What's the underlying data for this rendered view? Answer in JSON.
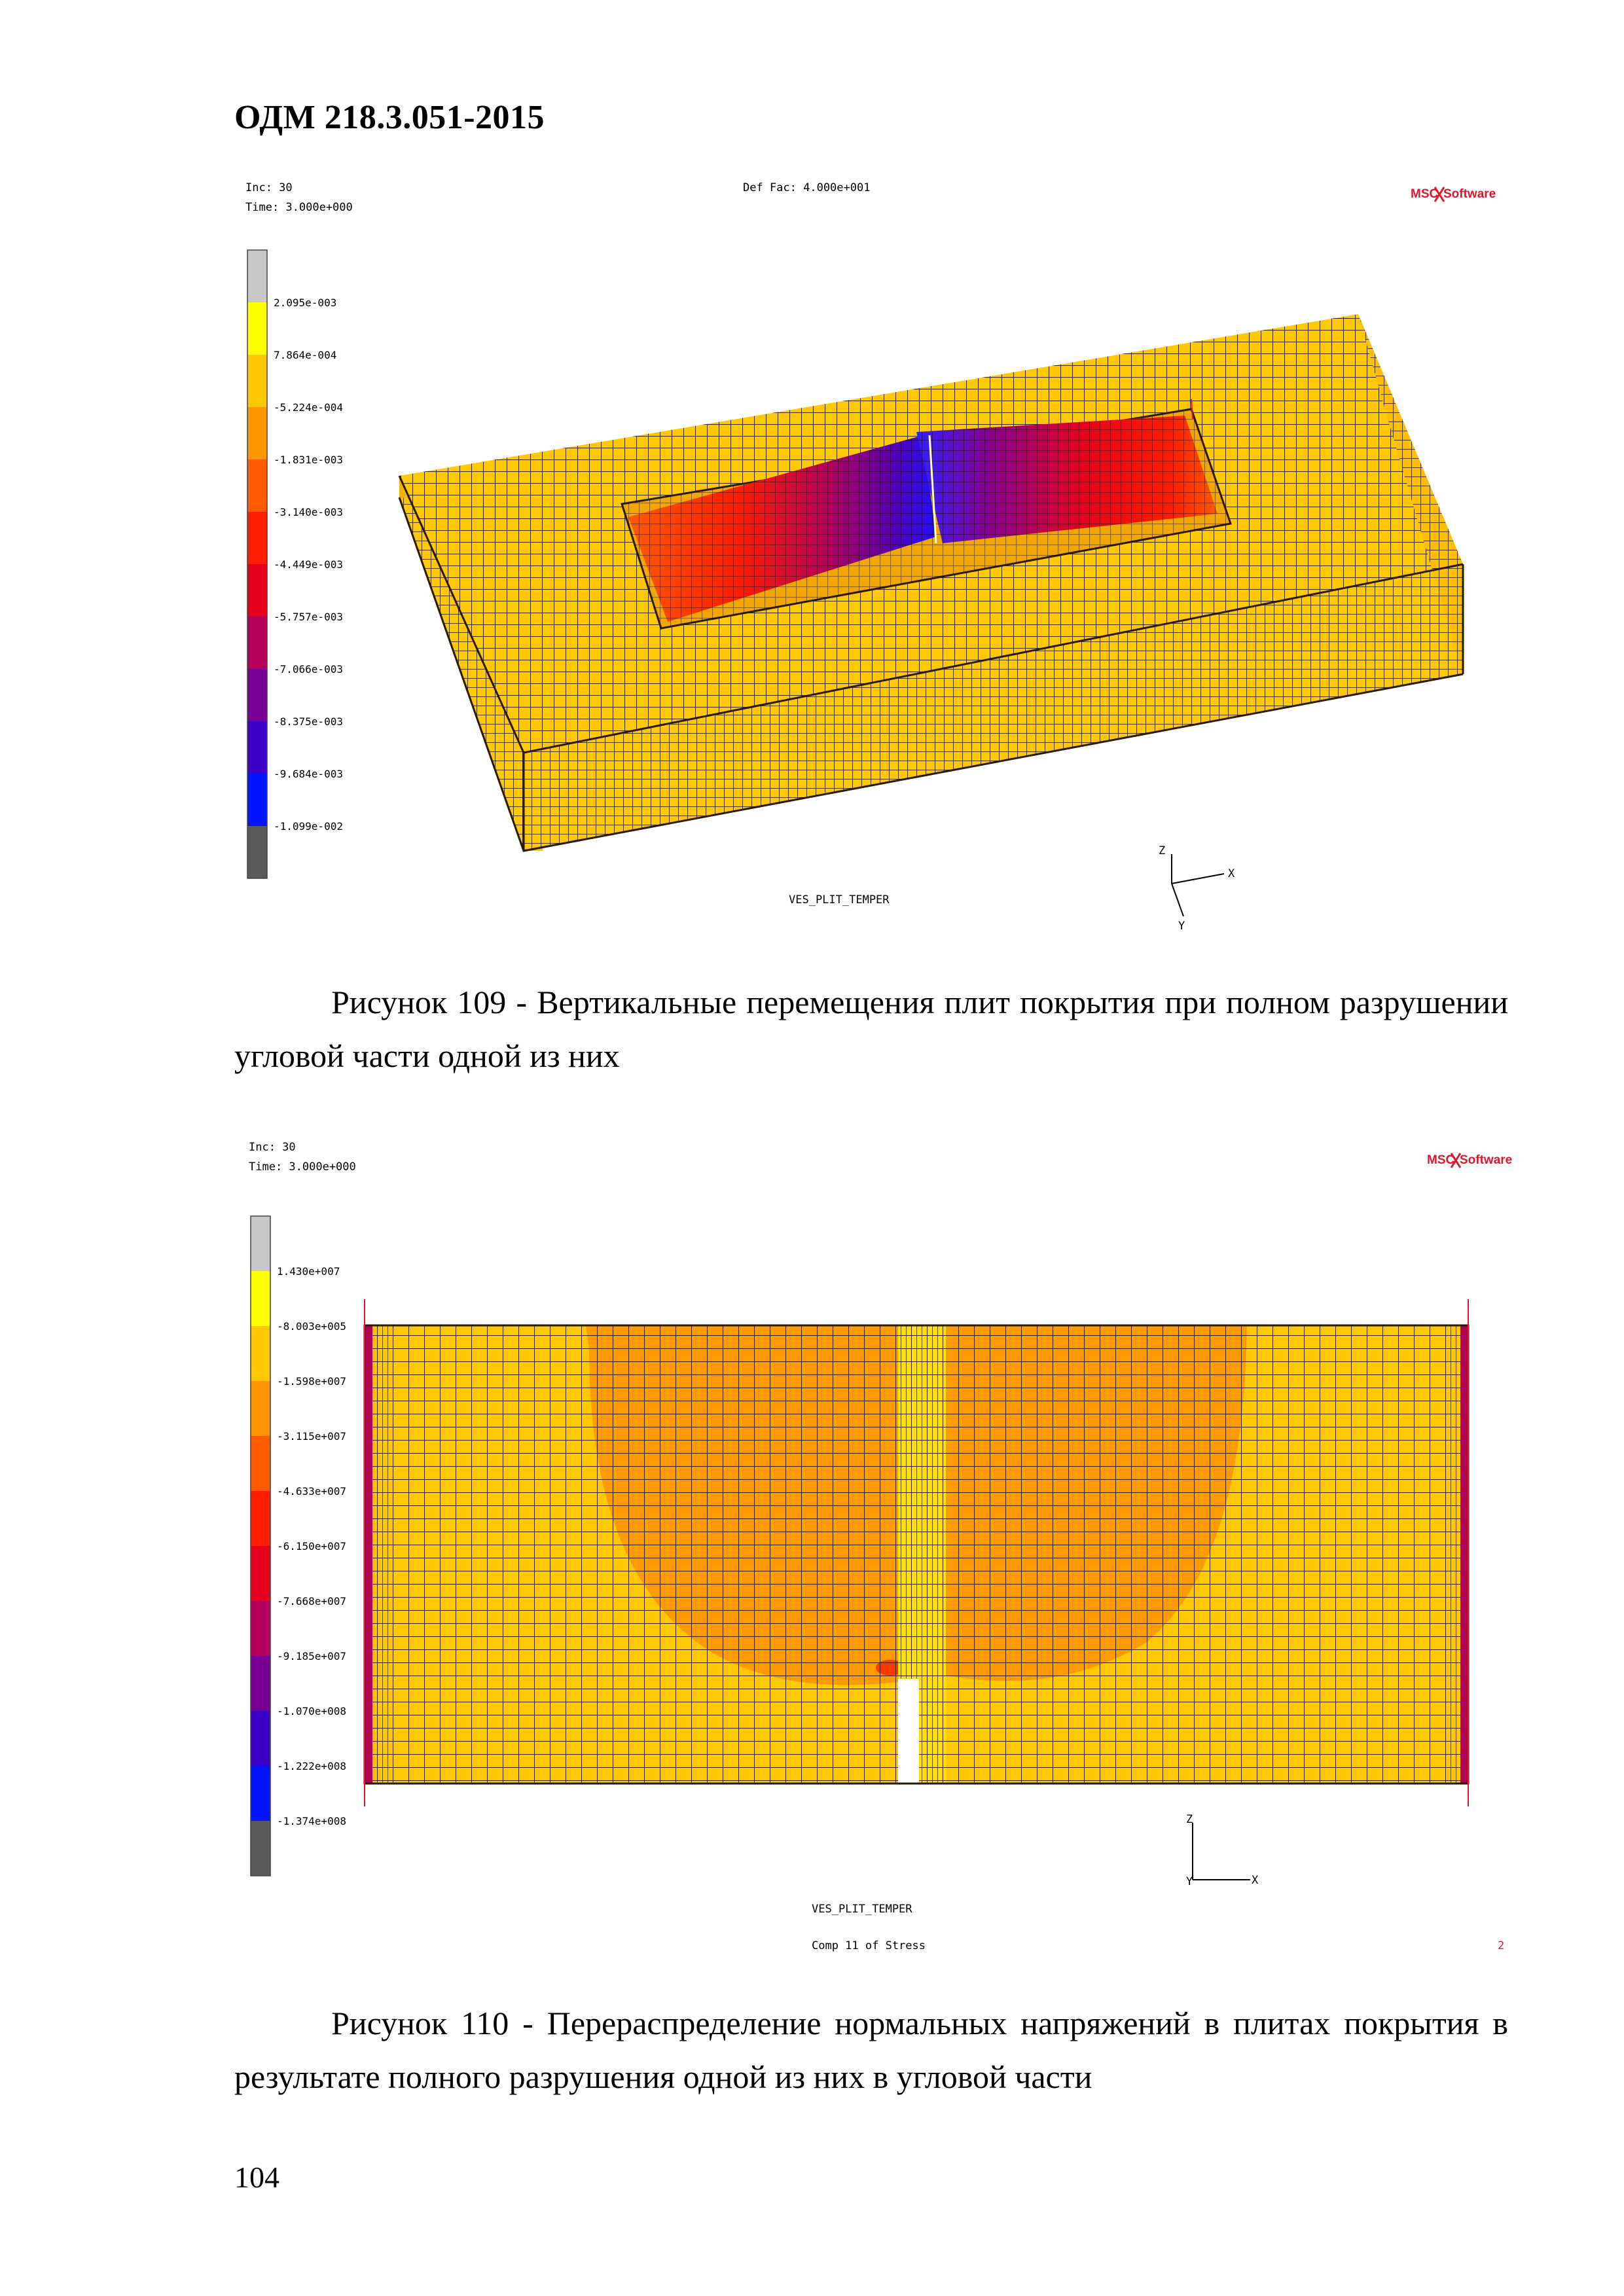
{
  "header": {
    "doc_code": "ОДМ 218.3.051-2015"
  },
  "figure1": {
    "inc_label": "Inc:  30",
    "time_label": "Time:  3.000e+000",
    "deffac_label": "Def Fac:  4.000e+001",
    "logo_left": "MSC",
    "logo_right": "Software",
    "legend_values": [
      "2.095e-003",
      "7.864e-004",
      "-5.224e-004",
      "-1.831e-003",
      "-3.140e-003",
      "-4.449e-003",
      "-5.757e-003",
      "-7.066e-003",
      "-8.375e-003",
      "-9.684e-003",
      "-1.099e-002"
    ],
    "legend_colors": [
      "#c8c8c8",
      "#ffff00",
      "#ffc800",
      "#ff9600",
      "#ff5a00",
      "#ff1e00",
      "#e6001e",
      "#b4005a",
      "#780096",
      "#3c00c8",
      "#0014ff",
      "#5a5a5a"
    ],
    "model_name": "VES_PLIT_TEMPER",
    "axis_z": "Z",
    "axis_x": "X",
    "axis_y": "Y"
  },
  "caption1": {
    "text": "Рисунок 109 - Вертикальные перемещения плит покрытия при полном разрушении угловой части одной из них"
  },
  "figure2": {
    "inc_label": "Inc:  30",
    "time_label": "Time:  3.000e+000",
    "logo_left": "MSC",
    "logo_right": "Software",
    "legend_values": [
      "1.430e+007",
      "-8.003e+005",
      "-1.598e+007",
      "-3.115e+007",
      "-4.633e+007",
      "-6.150e+007",
      "-7.668e+007",
      "-9.185e+007",
      "-1.070e+008",
      "-1.222e+008",
      "-1.374e+008"
    ],
    "legend_colors": [
      "#c8c8c8",
      "#ffff00",
      "#ffc800",
      "#ff9600",
      "#ff5a00",
      "#ff1e00",
      "#e6001e",
      "#b4005a",
      "#780096",
      "#3c00c8",
      "#0014ff",
      "#5a5a5a"
    ],
    "model_name": "VES_PLIT_TEMPER",
    "result_name": "Comp 11 of Stress",
    "result_index": "2",
    "axis_z": "Z",
    "axis_x": "X",
    "axis_y": "Y"
  },
  "caption2": {
    "text": "Рисунок 110 - Перераспределение нормальных напряжений в плитах покрытия в результате полного разрушения одной из них в угловой части"
  },
  "footer": {
    "page_number": "104"
  }
}
